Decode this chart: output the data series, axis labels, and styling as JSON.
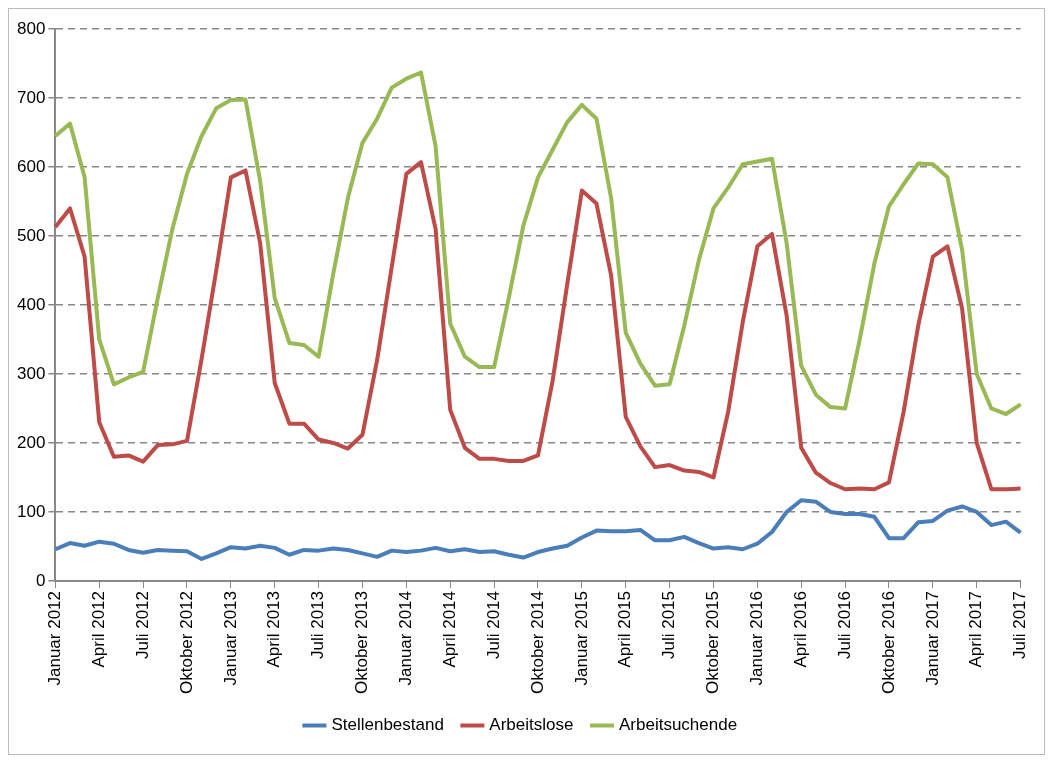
{
  "chart_data": {
    "type": "line",
    "categories": [
      "Januar 2012",
      null,
      null,
      "April 2012",
      null,
      null,
      "Juli 2012",
      null,
      null,
      "Oktober 2012",
      null,
      null,
      "Januar 2013",
      null,
      null,
      "April 2013",
      null,
      null,
      "Juli 2013",
      null,
      null,
      "Oktober 2013",
      null,
      null,
      "Januar 2014",
      null,
      null,
      "April 2014",
      null,
      null,
      "Juli 2014",
      null,
      null,
      "Oktober 2014",
      null,
      null,
      "Januar 2015",
      null,
      null,
      "April 2015",
      null,
      null,
      "Juli 2015",
      null,
      null,
      "Oktober 2015",
      null,
      null,
      "Januar 2016",
      null,
      null,
      "April 2016",
      null,
      null,
      "Juli 2016",
      null,
      null,
      "Oktober 2016",
      null,
      null,
      "Januar 2017",
      null,
      null,
      "April 2017",
      null,
      null,
      "Juli 2017"
    ],
    "series": [
      {
        "name": "Stellenbestand",
        "color": "#4a7ebb",
        "values": [
          46,
          55,
          51,
          57,
          54,
          45,
          41,
          45,
          44,
          43,
          32,
          40,
          49,
          47,
          51,
          48,
          38,
          45,
          44,
          47,
          45,
          40,
          35,
          44,
          42,
          44,
          48,
          43,
          46,
          42,
          43,
          38,
          34,
          42,
          47,
          51,
          63,
          73,
          72,
          72,
          74,
          59,
          59,
          64,
          55,
          47,
          49,
          46,
          54,
          71,
          100,
          117,
          115,
          100,
          97,
          97,
          93,
          62,
          62,
          85,
          87,
          102,
          108,
          100,
          81,
          86,
          70
        ]
      },
      {
        "name": "Arbeitslose",
        "color": "#be4b48",
        "values": [
          513,
          540,
          470,
          230,
          180,
          182,
          173,
          197,
          198,
          203,
          322,
          450,
          585,
          595,
          490,
          287,
          228,
          228,
          205,
          200,
          192,
          212,
          320,
          455,
          590,
          607,
          510,
          248,
          193,
          177,
          177,
          174,
          174,
          182,
          290,
          430,
          566,
          547,
          443,
          238,
          195,
          165,
          168,
          160,
          158,
          150,
          245,
          375,
          485,
          503,
          385,
          193,
          157,
          142,
          133,
          134,
          133,
          143,
          245,
          370,
          470,
          485,
          395,
          200,
          133,
          133,
          134
        ]
      },
      {
        "name": "Arbeitsuchende",
        "color": "#98b954",
        "values": [
          645,
          663,
          585,
          350,
          285,
          295,
          303,
          410,
          510,
          590,
          645,
          685,
          697,
          698,
          580,
          410,
          345,
          342,
          325,
          445,
          555,
          635,
          670,
          715,
          728,
          737,
          630,
          373,
          325,
          310,
          310,
          410,
          515,
          585,
          625,
          665,
          690,
          670,
          555,
          360,
          315,
          283,
          285,
          370,
          465,
          540,
          570,
          604,
          608,
          612,
          490,
          312,
          270,
          252,
          250,
          350,
          460,
          543,
          575,
          605,
          604,
          585,
          480,
          300,
          250,
          242,
          256
        ]
      }
    ],
    "ylim": [
      0,
      800
    ],
    "yticks": [
      0,
      100,
      200,
      300,
      400,
      500,
      600,
      700,
      800
    ],
    "grid": "y",
    "line_style": "solid",
    "legend": "bottom"
  }
}
